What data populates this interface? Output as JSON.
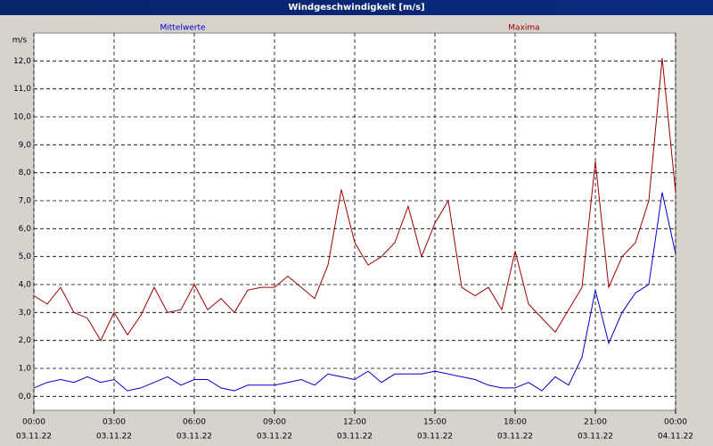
{
  "chart_data": {
    "type": "line",
    "title": "Windgeschwindigkeit [m/s]",
    "y_unit": "m/s",
    "x": [
      0,
      0.5,
      1,
      1.5,
      2,
      2.5,
      3,
      3.5,
      4,
      4.5,
      5,
      5.5,
      6,
      6.5,
      7,
      7.5,
      8,
      8.5,
      9,
      9.5,
      10,
      10.5,
      11,
      11.5,
      12,
      12.5,
      13,
      13.5,
      14,
      14.5,
      15,
      15.5,
      16,
      16.5,
      17,
      17.5,
      18,
      18.5,
      19,
      19.5,
      20,
      20.5,
      21,
      21.5,
      22,
      22.5,
      23,
      23.5,
      24
    ],
    "series": [
      {
        "name": "Mittelwerte",
        "color": "#0000c8",
        "values": [
          0.3,
          0.5,
          0.6,
          0.5,
          0.7,
          0.5,
          0.6,
          0.2,
          0.3,
          0.5,
          0.7,
          0.4,
          0.6,
          0.6,
          0.3,
          0.2,
          0.4,
          0.4,
          0.4,
          0.5,
          0.6,
          0.4,
          0.8,
          0.7,
          0.6,
          0.9,
          0.5,
          0.8,
          0.8,
          0.8,
          0.9,
          0.8,
          0.7,
          0.6,
          0.4,
          0.3,
          0.3,
          0.5,
          0.2,
          0.7,
          0.4,
          1.4,
          3.8,
          1.9,
          3.0,
          3.7,
          4.0,
          7.3,
          5.1
        ]
      },
      {
        "name": "Maxima",
        "color": "#a00000",
        "values": [
          3.6,
          3.3,
          3.9,
          3.0,
          2.8,
          2.0,
          3.0,
          2.2,
          2.9,
          3.9,
          3.0,
          3.1,
          4.0,
          3.1,
          3.5,
          3.0,
          3.8,
          3.9,
          3.9,
          4.3,
          3.9,
          3.5,
          4.7,
          7.4,
          5.5,
          4.7,
          5.0,
          5.5,
          6.8,
          5.0,
          6.2,
          7.0,
          3.9,
          3.6,
          3.9,
          3.1,
          5.2,
          3.3,
          2.8,
          2.3,
          3.1,
          3.9,
          8.4,
          3.9,
          5.0,
          5.5,
          7.0,
          12.1,
          7.3
        ]
      }
    ],
    "xlim": [
      0,
      24
    ],
    "xticks": [
      {
        "value": 0,
        "label": "00:00"
      },
      {
        "value": 3,
        "label": "03:00"
      },
      {
        "value": 6,
        "label": "06:00"
      },
      {
        "value": 9,
        "label": "09:00"
      },
      {
        "value": 12,
        "label": "12:00"
      },
      {
        "value": 15,
        "label": "15:00"
      },
      {
        "value": 18,
        "label": "18:00"
      },
      {
        "value": 21,
        "label": "21:00"
      },
      {
        "value": 24,
        "label": "00:00"
      }
    ],
    "xtick_dates": [
      "03.11.22",
      "03.11.22",
      "03.11.22",
      "03.11.22",
      "03.11.22",
      "03.11.22",
      "03.11.22",
      "03.11.22",
      "04.11.22"
    ],
    "ylim": [
      -0.5,
      13
    ],
    "yticks": [
      {
        "value": 0,
        "label": "0,0"
      },
      {
        "value": 1,
        "label": "1,0"
      },
      {
        "value": 2,
        "label": "2,0"
      },
      {
        "value": 3,
        "label": "3,0"
      },
      {
        "value": 4,
        "label": "4,0"
      },
      {
        "value": 5,
        "label": "5,0"
      },
      {
        "value": 6,
        "label": "6,0"
      },
      {
        "value": 7,
        "label": "7,0"
      },
      {
        "value": 8,
        "label": "8,0"
      },
      {
        "value": 9,
        "label": "9,0"
      },
      {
        "value": 10,
        "label": "10,0"
      },
      {
        "value": 11,
        "label": "11,0"
      },
      {
        "value": 12,
        "label": "12,0"
      }
    ],
    "grid": true
  }
}
